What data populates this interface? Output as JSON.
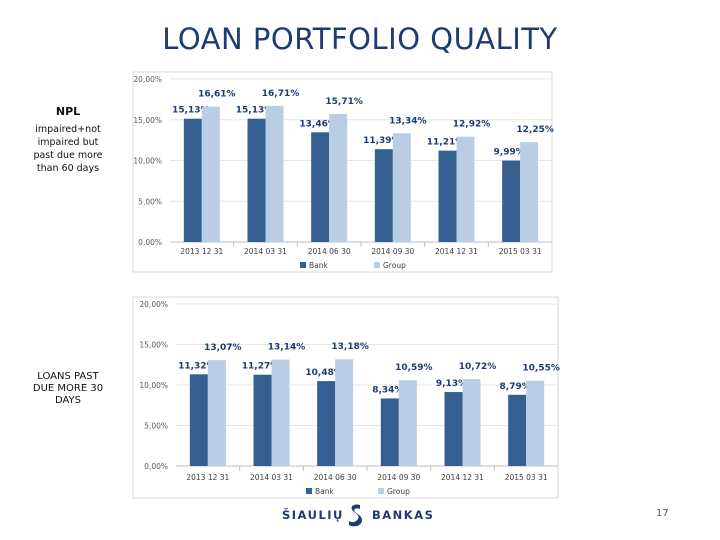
{
  "title": "LOAN PORTFOLIO QUALITY",
  "side_labels": {
    "npl_heading": "NPL",
    "npl_description": "impaired+not impaired but past due more than 60 days",
    "loans_past_due": "LOANS PAST DUE MORE 30 DAYS"
  },
  "colors": {
    "bank": "#365f91",
    "group": "#b9cde5"
  },
  "chart_data": [
    {
      "type": "bar",
      "categories": [
        "2013 12 31",
        "2014 03 31",
        "2014 06 30",
        "2014 09 30",
        "2014 12 31",
        "2015 03 31"
      ],
      "series": [
        {
          "name": "Bank",
          "values": [
            15.13,
            15.13,
            13.46,
            11.39,
            11.21,
            9.99
          ],
          "labels": [
            "15,13%",
            "15,13%",
            "13,46%",
            "11,39%",
            "11,21%",
            "9,99%"
          ]
        },
        {
          "name": "Group",
          "values": [
            16.61,
            16.71,
            15.71,
            13.34,
            12.92,
            12.25
          ],
          "labels": [
            "16,61%",
            "16,71%",
            "15,71%",
            "13,34%",
            "12,92%",
            "12,25%"
          ]
        }
      ],
      "yticks": [
        "0,00%",
        "5,00%",
        "10,00%",
        "15,00%",
        "20,00%"
      ],
      "ylim": [
        0,
        20
      ],
      "legend": "bottom"
    },
    {
      "type": "bar",
      "categories": [
        "2013 12 31",
        "2014 03 31",
        "2014 06 30",
        "2014 09 30",
        "2014 12 31",
        "2015 03 31"
      ],
      "series": [
        {
          "name": "Bank",
          "values": [
            11.32,
            11.27,
            10.48,
            8.34,
            9.13,
            8.79
          ],
          "labels": [
            "11,32%",
            "11,27%",
            "10,48%",
            "8,34%",
            "9,13%",
            "8,79%"
          ]
        },
        {
          "name": "Group",
          "values": [
            13.07,
            13.14,
            13.18,
            10.59,
            10.72,
            10.55
          ],
          "labels": [
            "13,07%",
            "13,14%",
            "13,18%",
            "10,59%",
            "10,72%",
            "10,55%"
          ]
        }
      ],
      "yticks": [
        "0,00%",
        "5,00%",
        "10,00%",
        "15,00%",
        "20,00%"
      ],
      "ylim": [
        0,
        20
      ],
      "legend": "bottom"
    }
  ],
  "footer": {
    "left_text": "ŠIAULIŲ",
    "right_text": "BANKAS",
    "logo_icon": "siauliu-bankas-logo-icon"
  },
  "page_number": "17"
}
